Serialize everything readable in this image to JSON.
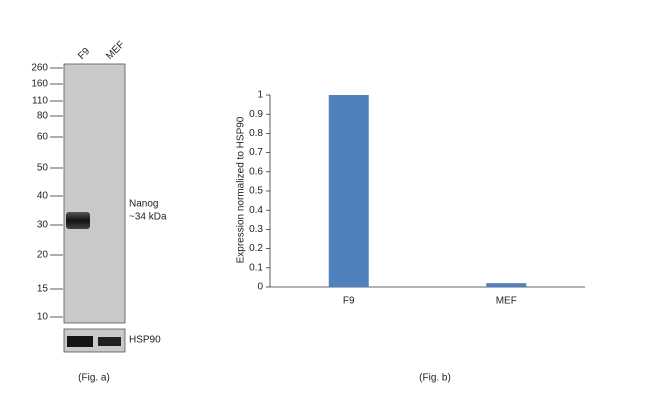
{
  "blot": {
    "lanes": [
      "F9",
      "MEF"
    ],
    "ladder": [
      "260",
      "160",
      "110",
      "80",
      "60",
      "50",
      "40",
      "30",
      "20",
      "15",
      "10"
    ],
    "band_label": "Nanog",
    "band_size": "~34 kDa",
    "loading_control": "HSP90",
    "caption": "(Fig. a)"
  },
  "chart_data": {
    "type": "bar",
    "ylabel": "Expression  normalized to HSP90",
    "categories": [
      "F9",
      "MEF"
    ],
    "values": [
      1,
      0.02
    ],
    "color": "#4f81bd",
    "ylim": [
      0,
      1
    ],
    "yticks": [
      0,
      0.1,
      0.2,
      0.3,
      0.4,
      0.5,
      0.6,
      0.7,
      0.8,
      0.9,
      1
    ],
    "caption": "(Fig. b)"
  }
}
